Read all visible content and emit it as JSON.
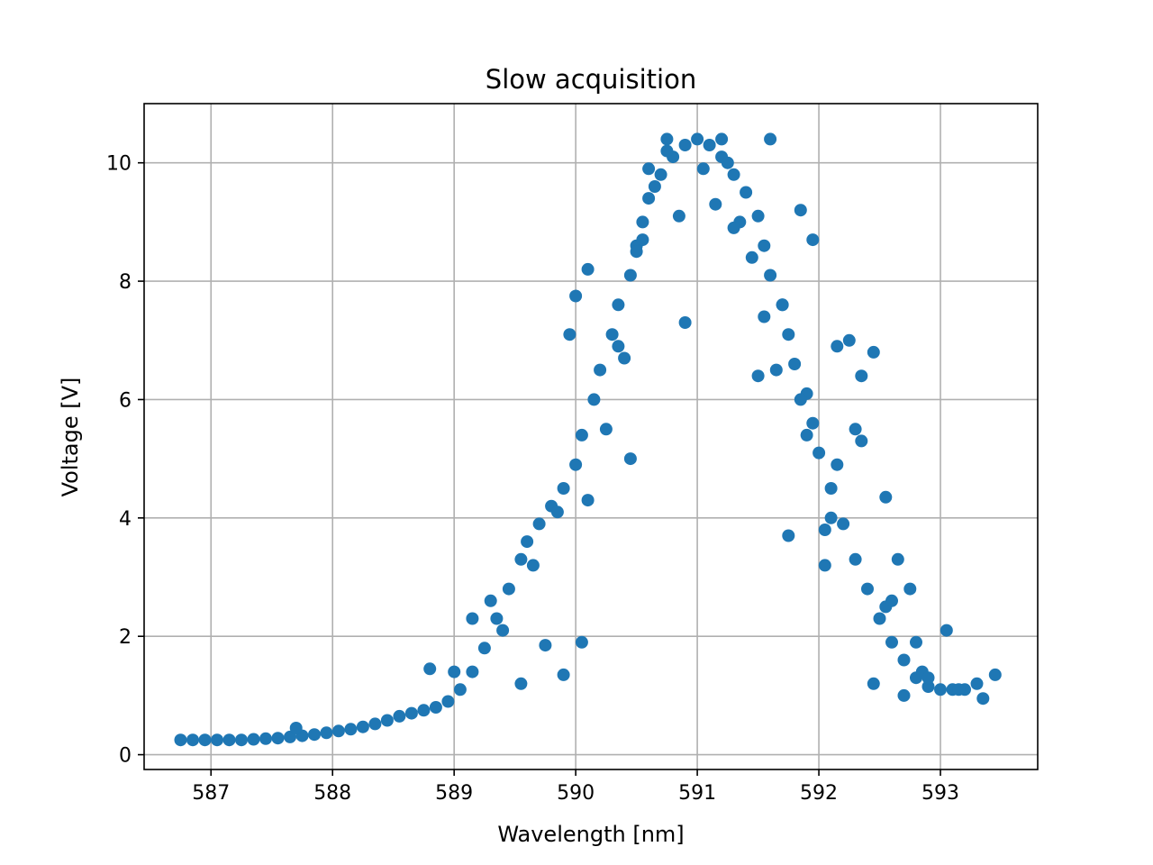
{
  "chart_data": {
    "type": "scatter",
    "title": "Slow acquisition",
    "xlabel": "Wavelength [nm]",
    "ylabel": "Voltage [V]",
    "xlim": [
      586.45,
      593.8
    ],
    "ylim": [
      -0.25,
      11.0
    ],
    "xticks": [
      587,
      588,
      589,
      590,
      591,
      592,
      593
    ],
    "yticks": [
      0,
      2,
      4,
      6,
      8,
      10
    ],
    "grid": true,
    "marker_color": "#1f77b4",
    "series": [
      {
        "x": [
          586.75,
          586.85,
          586.95,
          587.05,
          587.15,
          587.25,
          587.35,
          587.45,
          587.55,
          587.65,
          587.75,
          587.85,
          587.95,
          588.05,
          588.15,
          588.25,
          588.35,
          588.45,
          588.55,
          588.65,
          588.75,
          588.85,
          588.95,
          589.05,
          589.15,
          589.25,
          589.35,
          589.45,
          589.55,
          589.6,
          589.7,
          589.8,
          589.9,
          590.0,
          590.05,
          590.15,
          590.2,
          590.3,
          590.35,
          590.45,
          590.5,
          590.55,
          590.6,
          590.7,
          590.8,
          590.9,
          591.0,
          591.1,
          591.2,
          591.3,
          591.4,
          591.5,
          591.55,
          591.6,
          591.7,
          591.75,
          591.8,
          591.9,
          591.95,
          592.0,
          592.1,
          592.2,
          592.3,
          592.4,
          592.5,
          592.6,
          592.7,
          592.8,
          592.9,
          593.0,
          593.1,
          593.2,
          593.3,
          593.45,
          587.7,
          588.8,
          589.0,
          589.15,
          589.3,
          589.9,
          589.85,
          590.0,
          590.1,
          590.4,
          590.55,
          590.65,
          590.75,
          590.85,
          591.2,
          591.35,
          591.5,
          591.6,
          591.65,
          591.75,
          591.85,
          591.95,
          592.05,
          592.15,
          592.25,
          592.35,
          592.45,
          592.55,
          592.65,
          592.75,
          592.85,
          593.05,
          593.35,
          589.75,
          589.95,
          590.25,
          590.5,
          590.9,
          591.15,
          591.45,
          591.7,
          591.9,
          592.1,
          592.3,
          592.55,
          592.7,
          592.9,
          593.15,
          589.4,
          589.65,
          590.1,
          590.35,
          590.6,
          590.75,
          591.05,
          591.3,
          591.55,
          591.85,
          592.15,
          592.45,
          592.6,
          592.8,
          589.55,
          590.05,
          590.45,
          591.25,
          592.05,
          592.35
        ],
        "y": [
          0.25,
          0.25,
          0.25,
          0.25,
          0.25,
          0.25,
          0.26,
          0.27,
          0.28,
          0.3,
          0.32,
          0.34,
          0.37,
          0.4,
          0.43,
          0.47,
          0.52,
          0.58,
          0.65,
          0.7,
          0.75,
          0.8,
          0.9,
          1.1,
          1.4,
          1.8,
          2.3,
          2.8,
          3.3,
          3.6,
          3.9,
          4.2,
          4.5,
          4.9,
          5.4,
          6.0,
          6.5,
          7.1,
          7.6,
          8.1,
          8.6,
          9.0,
          9.4,
          9.8,
          10.1,
          10.3,
          10.4,
          10.3,
          10.1,
          9.8,
          9.5,
          9.1,
          8.6,
          8.1,
          7.6,
          7.1,
          6.6,
          6.1,
          5.6,
          5.1,
          4.5,
          3.9,
          3.3,
          2.8,
          2.3,
          1.9,
          1.6,
          1.3,
          1.15,
          1.1,
          1.1,
          1.1,
          1.2,
          1.35,
          0.45,
          1.45,
          1.4,
          2.3,
          2.6,
          1.35,
          4.1,
          7.75,
          8.2,
          6.7,
          8.7,
          9.6,
          10.4,
          9.1,
          10.4,
          9.0,
          6.4,
          10.4,
          6.5,
          3.7,
          9.2,
          8.7,
          3.2,
          6.9,
          7.0,
          6.4,
          6.8,
          4.35,
          3.3,
          2.8,
          1.4,
          2.1,
          0.95,
          1.85,
          7.1,
          5.5,
          8.5,
          7.3,
          9.3,
          8.4,
          7.6,
          5.4,
          4.0,
          5.5,
          2.5,
          1.0,
          1.3,
          1.1,
          2.1,
          3.2,
          4.3,
          6.9,
          9.9,
          10.2,
          9.9,
          8.9,
          7.4,
          6.0,
          4.9,
          1.2,
          2.6,
          1.9,
          1.2,
          1.9,
          5.0,
          10.0,
          3.8,
          5.3
        ]
      }
    ]
  }
}
